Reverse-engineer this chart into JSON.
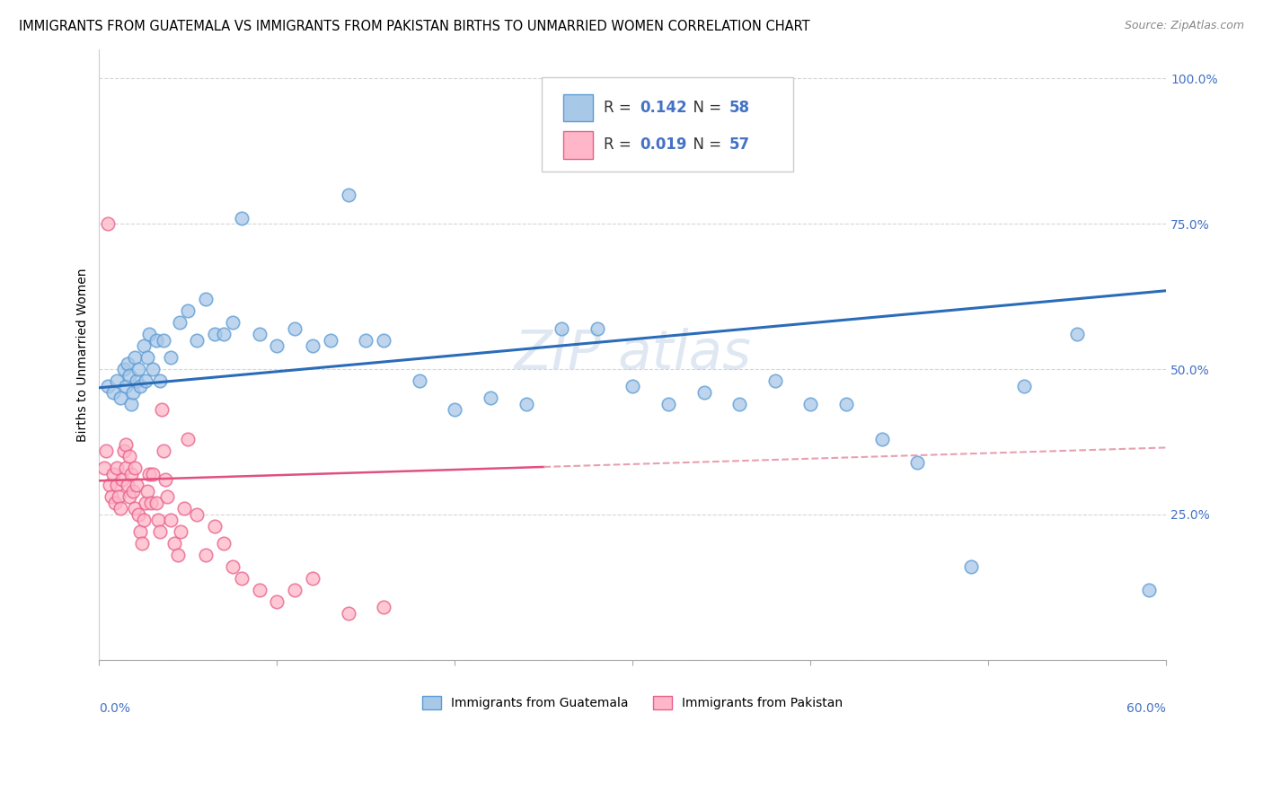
{
  "title": "IMMIGRANTS FROM GUATEMALA VS IMMIGRANTS FROM PAKISTAN BIRTHS TO UNMARRIED WOMEN CORRELATION CHART",
  "source": "Source: ZipAtlas.com",
  "ylabel": "Births to Unmarried Women",
  "xlim": [
    0.0,
    0.6
  ],
  "ylim": [
    0.0,
    1.05
  ],
  "watermark": "ZIPatlas",
  "blue_scatter_color": "#a8c8e8",
  "blue_edge_color": "#5b9bd5",
  "pink_scatter_color": "#ffb6c8",
  "pink_edge_color": "#e8608a",
  "blue_line_color": "#2b6cb8",
  "pink_line_color": "#e05080",
  "pink_dash_color": "#e8a0b0",
  "tick_color": "#4472c4",
  "guatemala_x": [
    0.005,
    0.008,
    0.01,
    0.012,
    0.014,
    0.015,
    0.016,
    0.017,
    0.018,
    0.019,
    0.02,
    0.021,
    0.022,
    0.023,
    0.025,
    0.026,
    0.027,
    0.028,
    0.03,
    0.032,
    0.034,
    0.036,
    0.04,
    0.045,
    0.05,
    0.055,
    0.06,
    0.065,
    0.07,
    0.075,
    0.08,
    0.09,
    0.1,
    0.11,
    0.12,
    0.13,
    0.14,
    0.15,
    0.16,
    0.18,
    0.2,
    0.22,
    0.24,
    0.26,
    0.28,
    0.3,
    0.32,
    0.34,
    0.36,
    0.38,
    0.4,
    0.42,
    0.44,
    0.46,
    0.49,
    0.52,
    0.55,
    0.59
  ],
  "guatemala_y": [
    0.47,
    0.46,
    0.48,
    0.45,
    0.5,
    0.47,
    0.51,
    0.49,
    0.44,
    0.46,
    0.52,
    0.48,
    0.5,
    0.47,
    0.54,
    0.48,
    0.52,
    0.56,
    0.5,
    0.55,
    0.48,
    0.55,
    0.52,
    0.58,
    0.6,
    0.55,
    0.62,
    0.56,
    0.56,
    0.58,
    0.76,
    0.56,
    0.54,
    0.57,
    0.54,
    0.55,
    0.8,
    0.55,
    0.55,
    0.48,
    0.43,
    0.45,
    0.44,
    0.57,
    0.57,
    0.47,
    0.44,
    0.46,
    0.44,
    0.48,
    0.44,
    0.44,
    0.38,
    0.34,
    0.16,
    0.47,
    0.56,
    0.12
  ],
  "pakistan_x": [
    0.003,
    0.004,
    0.005,
    0.006,
    0.007,
    0.008,
    0.009,
    0.01,
    0.01,
    0.011,
    0.012,
    0.013,
    0.014,
    0.015,
    0.015,
    0.016,
    0.017,
    0.017,
    0.018,
    0.019,
    0.02,
    0.02,
    0.021,
    0.022,
    0.023,
    0.024,
    0.025,
    0.026,
    0.027,
    0.028,
    0.029,
    0.03,
    0.032,
    0.033,
    0.034,
    0.035,
    0.036,
    0.037,
    0.038,
    0.04,
    0.042,
    0.044,
    0.046,
    0.048,
    0.05,
    0.055,
    0.06,
    0.065,
    0.07,
    0.075,
    0.08,
    0.09,
    0.1,
    0.11,
    0.12,
    0.14,
    0.16
  ],
  "pakistan_y": [
    0.33,
    0.36,
    0.75,
    0.3,
    0.28,
    0.32,
    0.27,
    0.3,
    0.33,
    0.28,
    0.26,
    0.31,
    0.36,
    0.33,
    0.37,
    0.3,
    0.28,
    0.35,
    0.32,
    0.29,
    0.26,
    0.33,
    0.3,
    0.25,
    0.22,
    0.2,
    0.24,
    0.27,
    0.29,
    0.32,
    0.27,
    0.32,
    0.27,
    0.24,
    0.22,
    0.43,
    0.36,
    0.31,
    0.28,
    0.24,
    0.2,
    0.18,
    0.22,
    0.26,
    0.38,
    0.25,
    0.18,
    0.23,
    0.2,
    0.16,
    0.14,
    0.12,
    0.1,
    0.12,
    0.14,
    0.08,
    0.09
  ],
  "blue_trend_x0": 0.0,
  "blue_trend_y0": 0.468,
  "blue_trend_x1": 0.6,
  "blue_trend_y1": 0.635,
  "pink_trend_x0": 0.0,
  "pink_trend_y0": 0.308,
  "pink_trend_x1": 0.6,
  "pink_trend_y1": 0.365,
  "title_fontsize": 10.5,
  "source_fontsize": 9,
  "axis_label_fontsize": 10,
  "tick_fontsize": 10,
  "legend_fontsize": 12
}
